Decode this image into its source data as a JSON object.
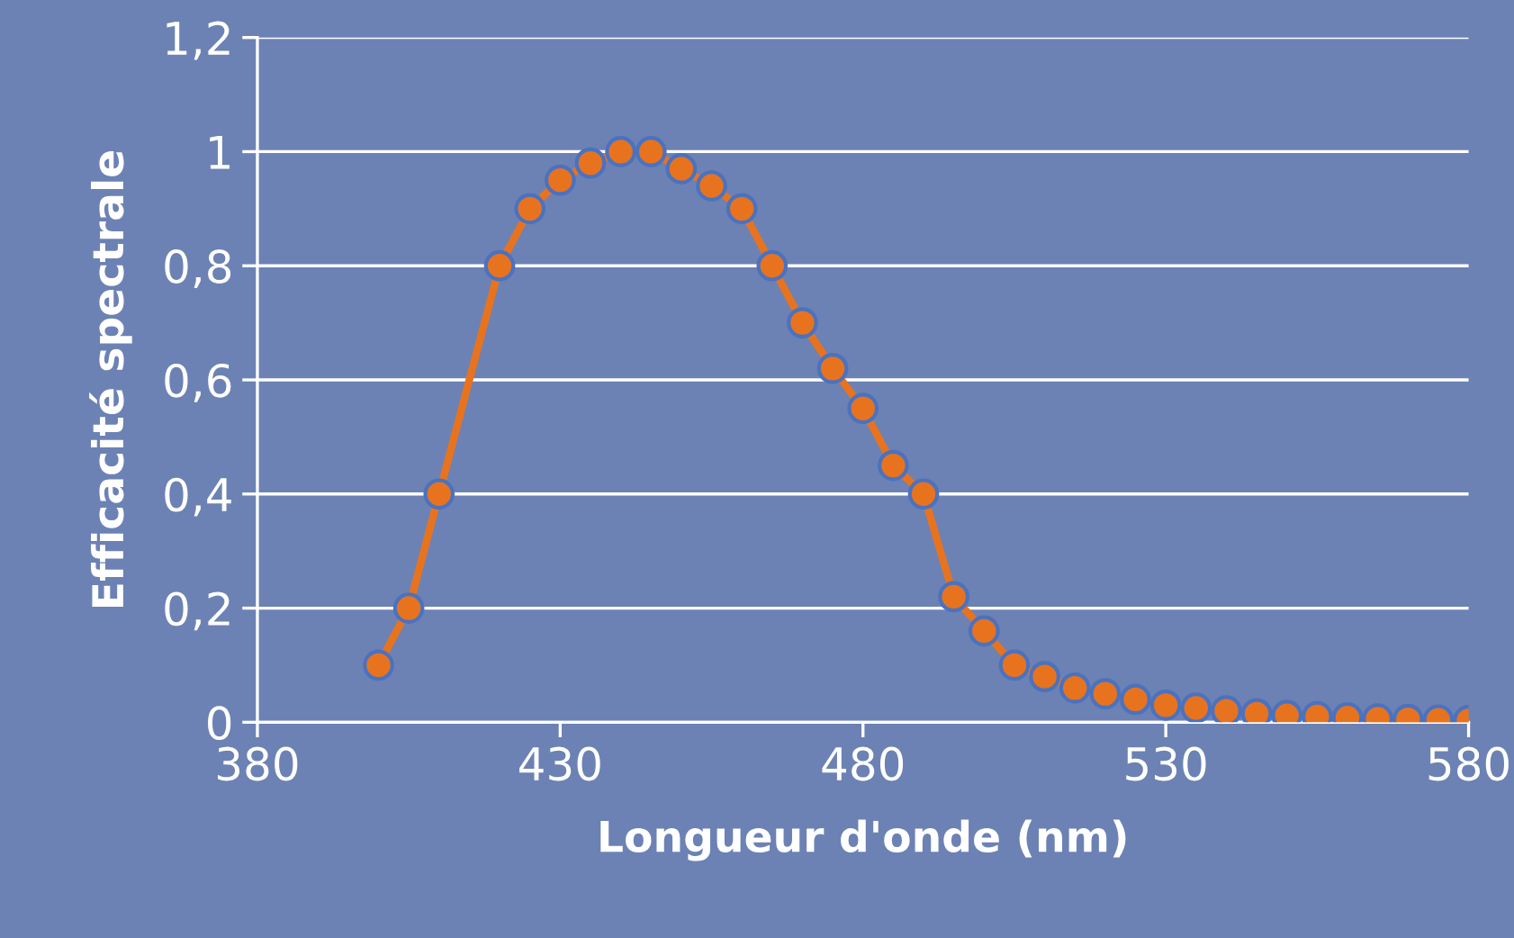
{
  "chart_data": {
    "type": "line",
    "xlabel": "Longueur d'onde (nm)",
    "ylabel": "Efficacité spectrale",
    "x": [
      400,
      405,
      410,
      420,
      425,
      430,
      435,
      440,
      445,
      450,
      455,
      460,
      465,
      470,
      475,
      480,
      485,
      490,
      495,
      500,
      505,
      510,
      515,
      520,
      525,
      530,
      535,
      540,
      545,
      550,
      555,
      560,
      565,
      570,
      575,
      580
    ],
    "series": [
      {
        "color": "#e8731f",
        "values": [
          0.1,
          0.2,
          0.4,
          0.8,
          0.9,
          0.95,
          0.98,
          1.0,
          1.0,
          0.97,
          0.94,
          0.9,
          0.8,
          0.7,
          0.62,
          0.55,
          0.45,
          0.4,
          0.22,
          0.16,
          0.1,
          0.08,
          0.06,
          0.05,
          0.04,
          0.03,
          0.025,
          0.02,
          0.015,
          0.012,
          0.01,
          0.008,
          0.006,
          0.005,
          0.004,
          0.003
        ]
      }
    ],
    "xlim": [
      380,
      580
    ],
    "xticks": [
      380,
      430,
      480,
      530,
      580
    ],
    "ylim": [
      0,
      1.2
    ],
    "yticks": [
      0,
      {
        "value": 0.2,
        "label": "0,2"
      },
      {
        "value": 0.4,
        "label": "0,4"
      },
      {
        "value": 0.6,
        "label": "0,6"
      },
      {
        "value": 0.8,
        "label": "0,8"
      },
      1,
      {
        "value": 1.2,
        "label": "1,2"
      }
    ],
    "grid": "y",
    "marker": "circle",
    "line_style": "solid",
    "legend": false
  }
}
